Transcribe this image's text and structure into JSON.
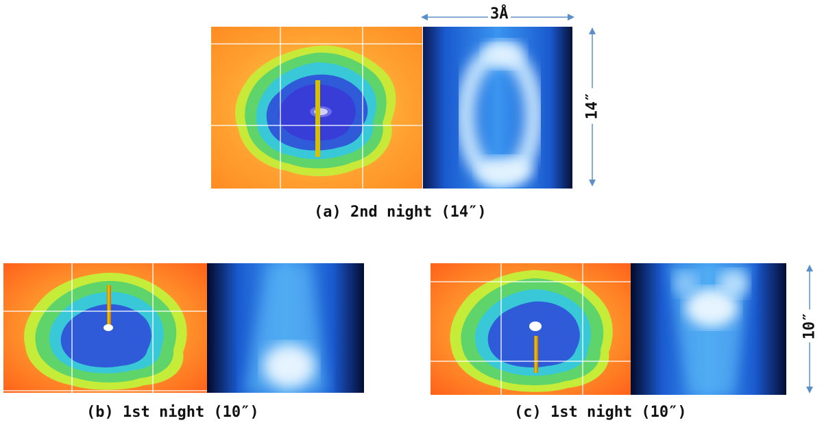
{
  "panels": [
    {
      "caption": "(a) 2nd night (14″)"
    },
    {
      "caption": "(b) 1st night (10″)"
    },
    {
      "caption": "(c) 1st night (10″)"
    }
  ],
  "scale": {
    "wavelength_label": "3Å",
    "spatial_label_a": "14″",
    "spatial_label_c": "10″"
  },
  "colors": {
    "arrow": "#5b8fc9",
    "grid": "#ffffff",
    "slit_line": "#c8c000"
  }
}
